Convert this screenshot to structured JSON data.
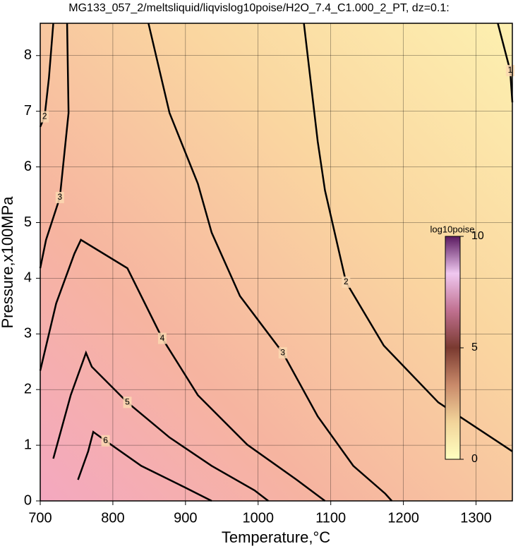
{
  "chart_data": {
    "type": "contour",
    "title": "MG133_057_2/meltsliquid/liqvislog10poise/H2O_7.4_C1.000_2_PT, dz=0.1:",
    "xlabel": "Temperature,°C",
    "ylabel": "Pressure,x100MPa",
    "xlim": [
      700,
      1350
    ],
    "xticks": [
      700,
      800,
      900,
      1000,
      1100,
      1200,
      1300
    ],
    "ylim": [
      0,
      8.58
    ],
    "yticks": [
      0,
      1,
      2,
      3,
      4,
      5,
      6,
      7,
      8
    ],
    "grid": true,
    "line_color": "#000000",
    "contours": [
      {
        "level": 1,
        "x": [
          1330,
          1347,
          1350
        ],
        "y": [
          8.58,
          7.73,
          7.16
        ]
      },
      {
        "level": 2,
        "x": [
          1063,
          1082,
          1092,
          1121,
          1173,
          1248,
          1350
        ],
        "y": [
          8.58,
          6.46,
          5.58,
          3.93,
          2.79,
          1.77,
          0.89
        ]
      },
      {
        "level": 3,
        "x": [
          849,
          878,
          917,
          936,
          975,
          1034,
          1082,
          1131,
          1175,
          1184
        ],
        "y": [
          8.58,
          6.97,
          5.7,
          4.82,
          3.68,
          2.66,
          1.52,
          0.63,
          0.13,
          0
        ]
      },
      {
        "level": 3,
        "x": [
          737,
          739,
          727,
          708,
          700
        ],
        "y": [
          8.58,
          6.97,
          5.45,
          4.69,
          4.18
        ]
      },
      {
        "level": 2,
        "x": [
          718,
          712,
          706,
          700
        ],
        "y": [
          8.58,
          7.6,
          6.9,
          6.72
        ]
      },
      {
        "level": 4,
        "x": [
          700,
          722,
          747,
          756,
          820,
          868,
          917,
          985,
          1053,
          1092
        ],
        "y": [
          2.34,
          3.55,
          4.44,
          4.69,
          4.18,
          2.92,
          1.9,
          1.01,
          0.38,
          0
        ]
      },
      {
        "level": 5,
        "x": [
          718,
          742,
          763,
          771,
          820,
          878,
          936,
          995,
          1014
        ],
        "y": [
          0.76,
          1.9,
          2.66,
          2.41,
          1.77,
          1.14,
          0.63,
          0.19,
          0
        ]
      },
      {
        "level": 6,
        "x": [
          752,
          766,
          773,
          790,
          839,
          898,
          936
        ],
        "y": [
          0.38,
          0.89,
          1.24,
          1.08,
          0.63,
          0.25,
          0
        ]
      }
    ],
    "colorbar": {
      "label": "log10poise",
      "lim": [
        0,
        10
      ],
      "ticks": [
        0,
        5,
        10
      ],
      "colors": [
        "#ffffc0",
        "#f2d49a",
        "#c98a6a",
        "#7a3a30",
        "#c07090",
        "#f0c8f0",
        "#5a1a60"
      ]
    }
  }
}
